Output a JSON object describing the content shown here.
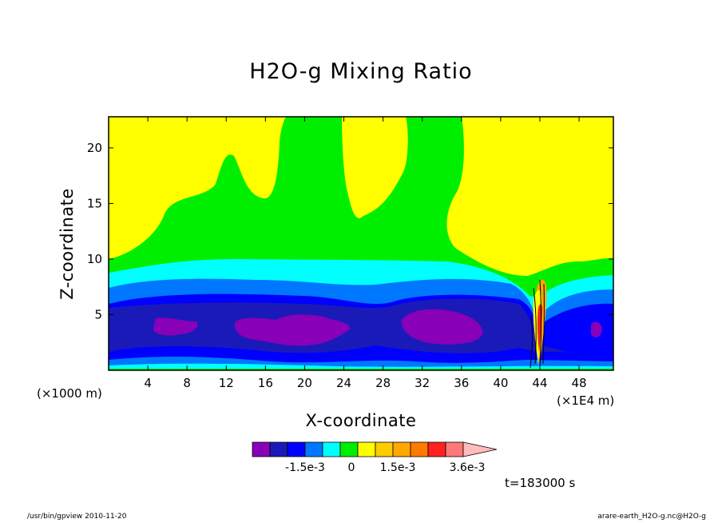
{
  "chart_data": {
    "type": "contour",
    "title": "H2O-g Mixing Ratio",
    "xlabel": "X-coordinate",
    "ylabel": "Z-coordinate",
    "x_unit": "(×1000 m)",
    "x_unit_secondary": "(×1E4 m)",
    "xlim": [
      0,
      51.5
    ],
    "ylim": [
      0,
      22.8
    ],
    "x_ticks": [
      4,
      8,
      12,
      16,
      20,
      24,
      28,
      32,
      36,
      40,
      44,
      48
    ],
    "y_ticks": [
      5,
      10,
      15,
      20
    ],
    "colorbar": {
      "colors": [
        "#8800b8",
        "#1a1ab8",
        "#0000ff",
        "#0077ff",
        "#00ffff",
        "#00ee00",
        "#ffff00",
        "#ffcc00",
        "#ffa800",
        "#ff7a00",
        "#ff2020",
        "#ff7878",
        "#ffbcbc"
      ],
      "labels": [
        "-1.5e-3",
        "0",
        "1.5e-3",
        "3.6e-3"
      ]
    },
    "time_label": "t=183000 s"
  },
  "footer": {
    "left": "/usr/bin/gpview  2010-11-20",
    "right": "arare-earth_H2O-g.nc@H2O-g"
  }
}
